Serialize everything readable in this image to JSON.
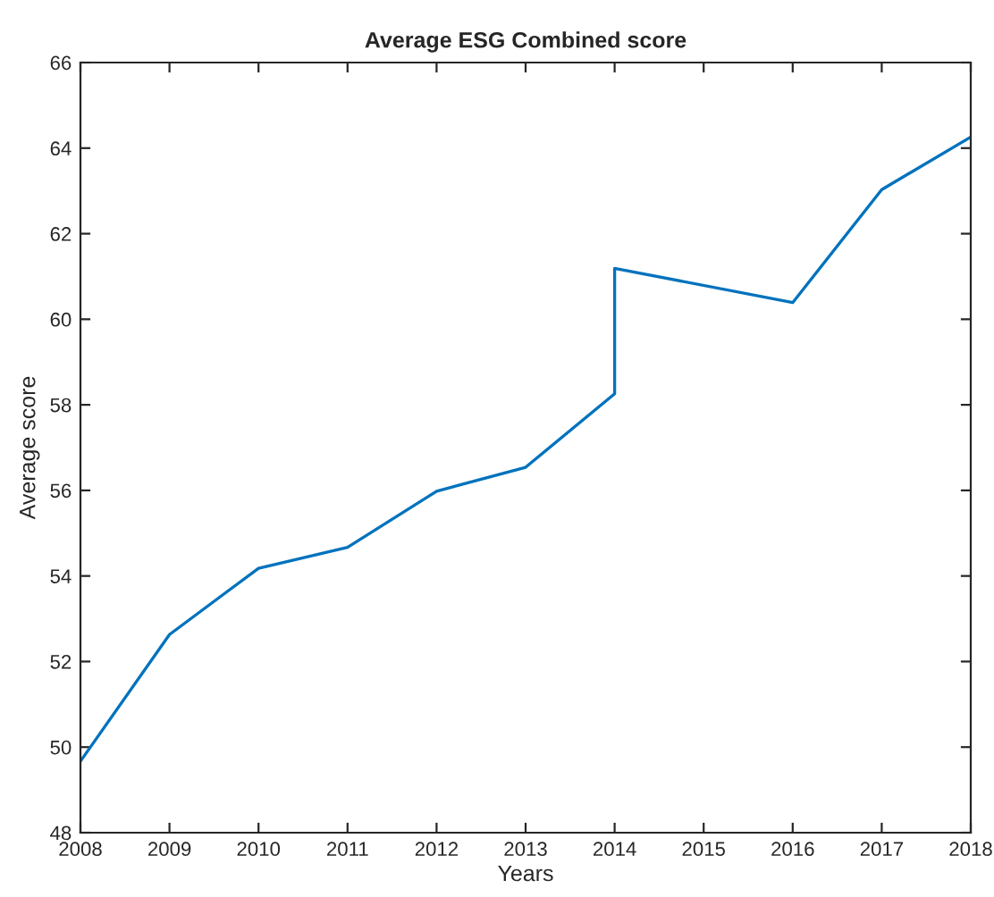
{
  "chart_data": {
    "type": "line",
    "title": "Average ESG Combined score",
    "xlabel": "Years",
    "ylabel": "Average score",
    "series": [
      {
        "color": "#0072bd",
        "x": [
          2008,
          2009,
          2010,
          2011,
          2012,
          2013,
          2014,
          2014,
          2016,
          2017,
          2018
        ],
        "values": [
          49.67,
          52.63,
          54.18,
          54.67,
          55.98,
          56.54,
          58.26,
          61.19,
          60.39,
          63.03,
          64.26
        ]
      }
    ],
    "xlim": [
      2008,
      2018
    ],
    "xticks": [
      2008,
      2009,
      2010,
      2011,
      2012,
      2013,
      2014,
      2015,
      2016,
      2017,
      2018
    ],
    "ylim": [
      48,
      66
    ],
    "yticks": [
      48,
      50,
      52,
      54,
      56,
      58,
      60,
      62,
      64,
      66
    ],
    "grid": false,
    "legend": false
  }
}
